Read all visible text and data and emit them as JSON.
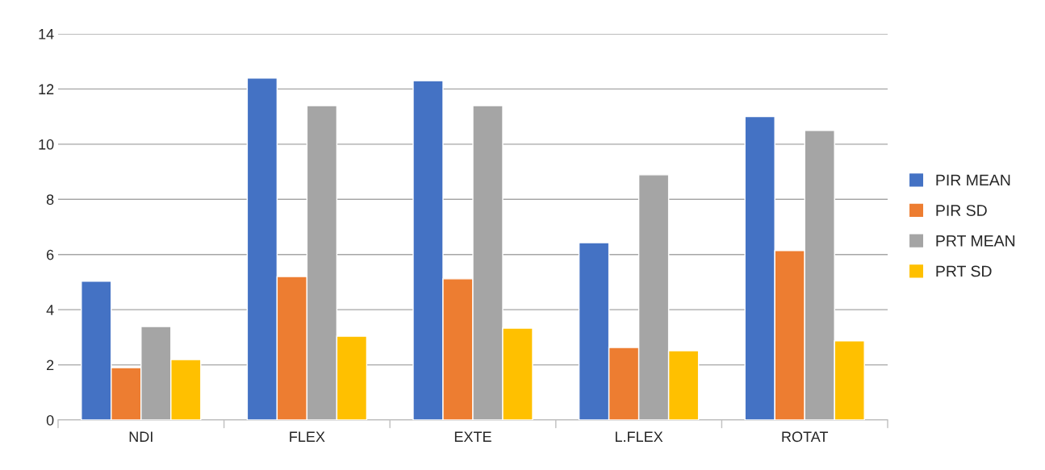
{
  "chart_data": {
    "type": "bar",
    "categories": [
      "NDI",
      "FLEX",
      "EXTE",
      "L.FLEX",
      "ROTAT"
    ],
    "series": [
      {
        "name": "PIR MEAN",
        "color": "#4472c4",
        "values": [
          5.03,
          12.4,
          12.3,
          6.43,
          11.0
        ]
      },
      {
        "name": "PIR SD",
        "color": "#ed7d31",
        "values": [
          1.9,
          5.2,
          5.12,
          2.63,
          6.14
        ]
      },
      {
        "name": "PRT MEAN",
        "color": "#a5a5a5",
        "values": [
          3.39,
          11.4,
          11.4,
          8.89,
          10.5
        ]
      },
      {
        "name": "PRT SD",
        "color": "#ffc000",
        "values": [
          2.19,
          3.04,
          3.33,
          2.51,
          2.87
        ]
      }
    ],
    "ylim": [
      0,
      14
    ],
    "yticks": [
      0,
      2,
      4,
      6,
      8,
      10,
      12,
      14
    ],
    "grid": "y",
    "legend": "right"
  }
}
